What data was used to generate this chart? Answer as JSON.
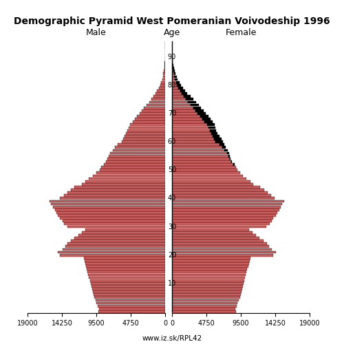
{
  "title": "Demographic Pyramid West Pomeranian Voivodeship 1996",
  "male_label": "Male",
  "female_label": "Female",
  "age_label": "Age",
  "footer": "www.iz.sk/RPL42",
  "xlim": 19000,
  "bar_color_main": "#cd5c5c",
  "bar_color_black": "#000000",
  "ages": [
    0,
    1,
    2,
    3,
    4,
    5,
    6,
    7,
    8,
    9,
    10,
    11,
    12,
    13,
    14,
    15,
    16,
    17,
    18,
    19,
    20,
    21,
    22,
    23,
    24,
    25,
    26,
    27,
    28,
    29,
    30,
    31,
    32,
    33,
    34,
    35,
    36,
    37,
    38,
    39,
    40,
    41,
    42,
    43,
    44,
    45,
    46,
    47,
    48,
    49,
    50,
    51,
    52,
    53,
    54,
    55,
    56,
    57,
    58,
    59,
    60,
    61,
    62,
    63,
    64,
    65,
    66,
    67,
    68,
    69,
    70,
    71,
    72,
    73,
    74,
    75,
    76,
    77,
    78,
    79,
    80,
    81,
    82,
    83,
    84,
    85,
    86,
    87,
    88,
    89,
    90,
    91,
    92,
    93,
    94,
    95
  ],
  "male": [
    9200,
    9100,
    9300,
    9500,
    9600,
    9800,
    9900,
    10000,
    10100,
    10200,
    10300,
    10400,
    10500,
    10600,
    10700,
    10800,
    10900,
    11000,
    11100,
    11200,
    14500,
    14800,
    14200,
    13800,
    13500,
    13000,
    12500,
    12000,
    11500,
    11000,
    13500,
    14000,
    14200,
    14500,
    14800,
    15000,
    15200,
    15500,
    15800,
    16000,
    14500,
    14000,
    13500,
    13000,
    12500,
    11500,
    11000,
    10500,
    10000,
    9500,
    9000,
    8800,
    8500,
    8200,
    8000,
    7800,
    7600,
    7200,
    6900,
    6600,
    6000,
    5800,
    5600,
    5400,
    5200,
    5000,
    4800,
    4500,
    4200,
    3900,
    3500,
    3200,
    2900,
    2600,
    2200,
    1900,
    1600,
    1300,
    1100,
    900,
    700,
    550,
    420,
    320,
    240,
    180,
    130,
    90,
    60,
    40,
    25,
    18,
    12,
    8,
    5,
    3
  ],
  "female": [
    8800,
    8700,
    8900,
    9000,
    9200,
    9400,
    9500,
    9600,
    9700,
    9800,
    9900,
    10000,
    10100,
    10200,
    10300,
    10400,
    10500,
    10600,
    10700,
    10800,
    14000,
    14300,
    13800,
    13400,
    13100,
    12600,
    12100,
    11600,
    11100,
    10600,
    13000,
    13500,
    13800,
    14000,
    14300,
    14500,
    14800,
    15000,
    15200,
    15500,
    14200,
    13700,
    13200,
    12700,
    12200,
    11200,
    10800,
    10300,
    9800,
    9400,
    9000,
    8800,
    8600,
    8300,
    8100,
    8000,
    7900,
    7700,
    7400,
    7200,
    7000,
    6800,
    6600,
    6300,
    6100,
    6000,
    5900,
    5600,
    5300,
    5000,
    4700,
    4400,
    4000,
    3700,
    3300,
    2900,
    2600,
    2100,
    1800,
    1500,
    1250,
    1000,
    800,
    620,
    480,
    360,
    280,
    200,
    140,
    95,
    65,
    45,
    30,
    20,
    12,
    7
  ],
  "age_ticks": [
    10,
    20,
    30,
    40,
    50,
    60,
    70,
    80,
    90
  ],
  "x_tick_labels": [
    "19000",
    "14250",
    "9500",
    "4750",
    "0"
  ]
}
